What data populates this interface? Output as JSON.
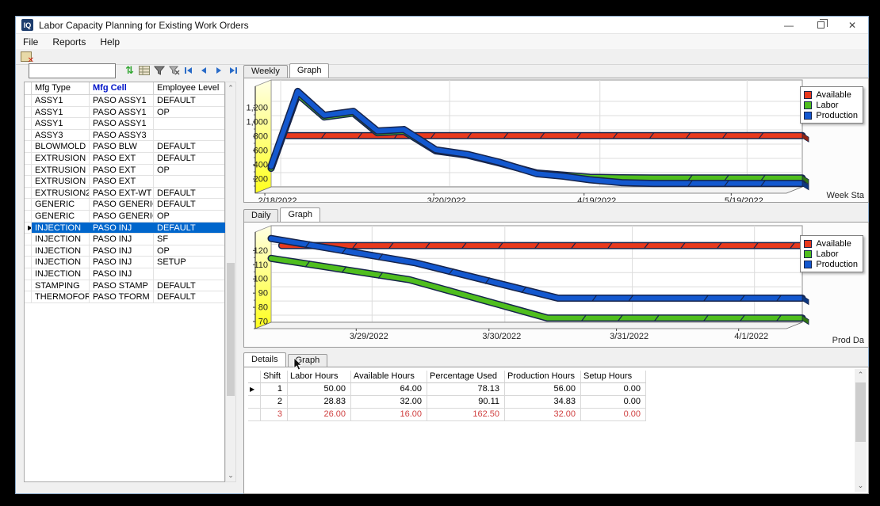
{
  "window": {
    "title": "Labor Capacity Planning for Existing Work Orders",
    "icon_text": "IQ",
    "controls": {
      "minimize": "—",
      "restore": "restore",
      "close": "✕"
    }
  },
  "menu": [
    "File",
    "Reports",
    "Help"
  ],
  "toolbar": {
    "icons": [
      "exit-form-icon"
    ]
  },
  "left_panel": {
    "search": {
      "value": "",
      "placeholder": ""
    },
    "icons": [
      "sort-icon",
      "grid-icon",
      "filter-icon",
      "filter-clear-icon",
      "nav-first-icon",
      "nav-prev-icon",
      "nav-next-icon",
      "nav-last-icon"
    ],
    "grid": {
      "columns": [
        "Mfg Type",
        "Mfg Cell",
        "Employee Level"
      ],
      "sorted_column": "Mfg Cell",
      "selected_index": 11,
      "rows": [
        [
          "ASSY1",
          "PASO ASSY1",
          "DEFAULT"
        ],
        [
          "ASSY1",
          "PASO ASSY1",
          "OP"
        ],
        [
          "ASSY1",
          "PASO ASSY1",
          ""
        ],
        [
          "ASSY3",
          "PASO ASSY3",
          ""
        ],
        [
          "BLOWMOLD",
          "PASO BLW",
          "DEFAULT"
        ],
        [
          "EXTRUSION",
          "PASO EXT",
          "DEFAULT"
        ],
        [
          "EXTRUSION",
          "PASO EXT",
          "OP"
        ],
        [
          "EXTRUSION",
          "PASO EXT",
          ""
        ],
        [
          "EXTRUSION2",
          "PASO EXT-WT",
          "DEFAULT"
        ],
        [
          "GENERIC",
          "PASO GENERIC",
          "DEFAULT"
        ],
        [
          "GENERIC",
          "PASO GENERIC",
          "OP"
        ],
        [
          "INJECTION",
          "PASO INJ",
          "DEFAULT"
        ],
        [
          "INJECTION",
          "PASO INJ",
          "SF"
        ],
        [
          "INJECTION",
          "PASO INJ",
          "OP"
        ],
        [
          "INJECTION",
          "PASO INJ",
          "SETUP"
        ],
        [
          "INJECTION",
          "PASO INJ",
          ""
        ],
        [
          "STAMPING",
          "PASO STAMP",
          "DEFAULT"
        ],
        [
          "THERMOFORM",
          "PASO TFORM",
          "DEFAULT"
        ]
      ]
    }
  },
  "weekly_panel": {
    "tabs": [
      "Weekly",
      "Graph"
    ],
    "active_tab": "Graph",
    "corner_label": "Week Sta"
  },
  "daily_panel": {
    "tabs": [
      "Daily",
      "Graph"
    ],
    "active_tab": "Graph",
    "corner_label": "Prod Da"
  },
  "details_panel": {
    "tabs": [
      "Details",
      "Graph"
    ],
    "active_tab": "Details",
    "table": {
      "columns": [
        "Shift",
        "Labor Hours",
        "Available Hours",
        "Percentage Used",
        "Production Hours",
        "Setup Hours"
      ],
      "rows": [
        {
          "values": [
            "1",
            "50.00",
            "64.00",
            "78.13",
            "56.00",
            "0.00"
          ],
          "alert": false,
          "marker": true
        },
        {
          "values": [
            "2",
            "28.83",
            "32.00",
            "90.11",
            "34.83",
            "0.00"
          ],
          "alert": false,
          "marker": false
        },
        {
          "values": [
            "3",
            "26.00",
            "16.00",
            "162.50",
            "32.00",
            "0.00"
          ],
          "alert": true,
          "marker": false
        }
      ]
    }
  },
  "legend": {
    "items": [
      {
        "label": "Available",
        "color": "#e8391d"
      },
      {
        "label": "Labor",
        "color": "#4fbe1e"
      },
      {
        "label": "Production",
        "color": "#1358cf"
      }
    ]
  },
  "colors": {
    "selection": "#0066cc",
    "alert_text": "#d04040",
    "wall_top": "#ffffe4",
    "wall_bottom": "#ffff1e"
  },
  "chart_data": [
    {
      "type": "line",
      "id": "weekly",
      "title": "",
      "xlabel": "Week Sta",
      "ylabel": "",
      "ylim": [
        0,
        1500
      ],
      "yticks": [
        200,
        400,
        600,
        800,
        1000,
        1200
      ],
      "xticks": [
        {
          "label": "2/18/2022",
          "f": 0.018
        },
        {
          "label": "3/20/2022",
          "f": 0.336
        },
        {
          "label": "4/19/2022",
          "f": 0.619
        },
        {
          "label": "5/19/2022",
          "f": 0.896
        }
      ],
      "series": [
        {
          "name": "Available",
          "color": "#e8391d",
          "points": [
            [
              0.03,
              720
            ],
            [
              1,
              720
            ]
          ]
        },
        {
          "name": "Labor",
          "color": "#4fbe1e",
          "points": [
            [
              0,
              260
            ],
            [
              0.05,
              1300
            ],
            [
              0.1,
              980
            ],
            [
              0.155,
              1035
            ],
            [
              0.2,
              760
            ],
            [
              0.25,
              780
            ],
            [
              0.31,
              505
            ],
            [
              0.37,
              445
            ],
            [
              0.43,
              335
            ],
            [
              0.5,
              195
            ],
            [
              0.55,
              165
            ],
            [
              0.6,
              135
            ],
            [
              0.66,
              128
            ],
            [
              0.72,
              125
            ],
            [
              1,
              125
            ]
          ]
        },
        {
          "name": "Production",
          "color": "#1358cf",
          "points": [
            [
              0,
              290
            ],
            [
              0.05,
              1340
            ],
            [
              0.1,
              1005
            ],
            [
              0.155,
              1060
            ],
            [
              0.2,
              785
            ],
            [
              0.25,
              805
            ],
            [
              0.31,
              520
            ],
            [
              0.37,
              455
            ],
            [
              0.43,
              345
            ],
            [
              0.5,
              185
            ],
            [
              0.55,
              150
            ],
            [
              0.6,
              100
            ],
            [
              0.66,
              60
            ],
            [
              0.72,
              48
            ],
            [
              1,
              48
            ]
          ]
        }
      ]
    },
    {
      "type": "line",
      "id": "daily",
      "title": "",
      "xlabel": "Prod Da",
      "ylabel": "",
      "ylim": [
        65,
        133
      ],
      "yticks": [
        70,
        80,
        90,
        100,
        110,
        120
      ],
      "xticks": [
        {
          "label": "3/29/2022",
          "f": 0.19
        },
        {
          "label": "3/30/2022",
          "f": 0.44
        },
        {
          "label": "3/31/2022",
          "f": 0.68
        },
        {
          "label": "4/1/2022",
          "f": 0.91
        }
      ],
      "series": [
        {
          "name": "Available",
          "color": "#e8391d",
          "points": [
            [
              0.02,
              119
            ],
            [
              1,
              119
            ]
          ]
        },
        {
          "name": "Labor",
          "color": "#4fbe1e",
          "points": [
            [
              0,
              110
            ],
            [
              0.26,
              95
            ],
            [
              0.52,
              68
            ],
            [
              0.75,
              68
            ],
            [
              1,
              68
            ]
          ]
        },
        {
          "name": "Production",
          "color": "#1358cf",
          "points": [
            [
              0,
              124
            ],
            [
              0.27,
              107
            ],
            [
              0.54,
              82
            ],
            [
              0.75,
              82
            ],
            [
              1,
              82
            ]
          ]
        }
      ]
    }
  ]
}
